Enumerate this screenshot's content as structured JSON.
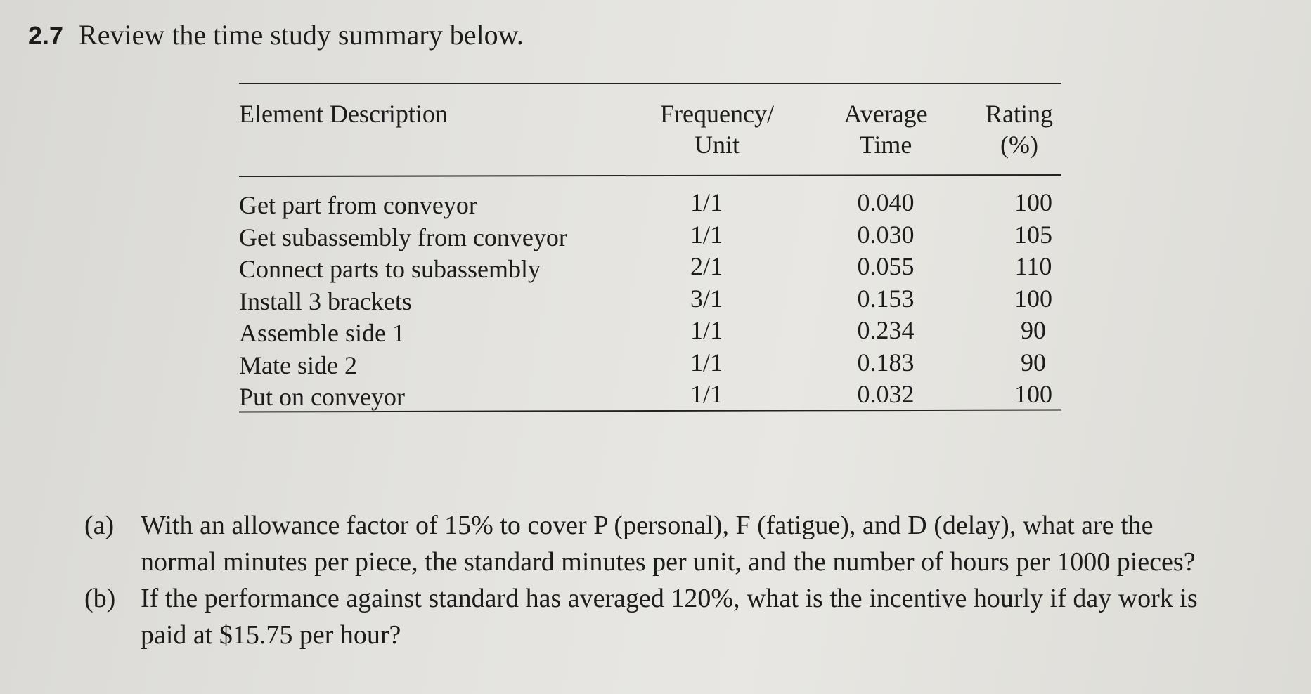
{
  "problem": {
    "number": "2.7",
    "title": "Review the time study summary below."
  },
  "table": {
    "headers": {
      "description": "Element Description",
      "frequency_line1": "Frequency/",
      "frequency_line2": "Unit",
      "average_line1": "Average",
      "average_line2": "Time",
      "rating_line1": "Rating",
      "rating_line2": "(%)"
    },
    "rows": [
      {
        "description": "Get part from conveyor",
        "frequency": "1/1",
        "average_time": "0.040",
        "rating": "100"
      },
      {
        "description": "Get subassembly from conveyor",
        "frequency": "1/1",
        "average_time": "0.030",
        "rating": "105"
      },
      {
        "description": "Connect parts to subassembly",
        "frequency": "2/1",
        "average_time": "0.055",
        "rating": "110"
      },
      {
        "description": "Install 3 brackets",
        "frequency": "3/1",
        "average_time": "0.153",
        "rating": "100"
      },
      {
        "description": "Assemble side 1",
        "frequency": "1/1",
        "average_time": "0.234",
        "rating": "90"
      },
      {
        "description": "Mate side 2",
        "frequency": "1/1",
        "average_time": "0.183",
        "rating": "90"
      },
      {
        "description": "Put on conveyor",
        "frequency": "1/1",
        "average_time": "0.032",
        "rating": "100"
      }
    ]
  },
  "questions": [
    {
      "label": "(a)",
      "text": "With an allowance factor of 15% to cover P (personal), F (fatigue), and D (delay), what are the normal minutes per piece, the standard minutes per unit, and the number of hours per 1000 pieces?"
    },
    {
      "label": "(b)",
      "text": "If the performance against standard has averaged 120%, what is the incentive hourly if day work is paid at $15.75 per hour?"
    }
  ]
}
